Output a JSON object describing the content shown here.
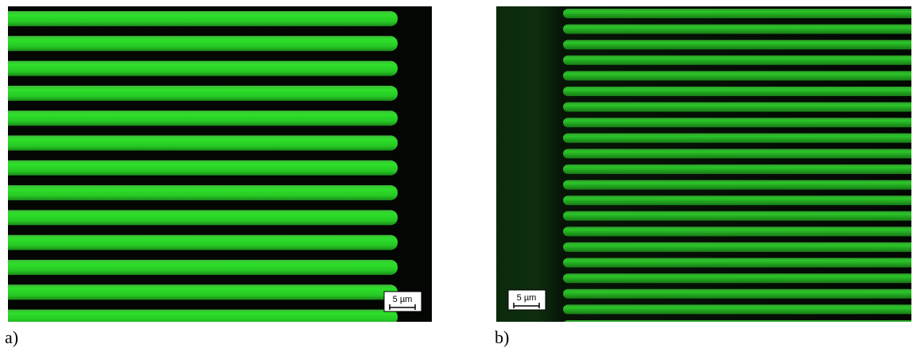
{
  "panels": [
    {
      "label": "a)",
      "scale_bar": "5 µm"
    },
    {
      "label": "b)",
      "scale_bar": "5 µm"
    }
  ]
}
